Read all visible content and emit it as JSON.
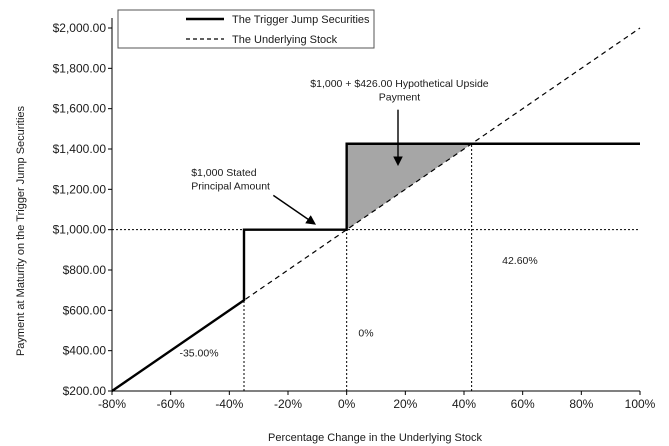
{
  "chart_data": {
    "type": "line",
    "title": "",
    "xlabel": "Percentage Change in the Underlying Stock",
    "ylabel": "Payment at Maturity on the Trigger Jump Securities",
    "xlim": [
      -80,
      100
    ],
    "ylim": [
      200,
      2000
    ],
    "grid": false,
    "legend_position": "top-left",
    "x_ticks": [
      -80,
      -60,
      -40,
      -20,
      0,
      20,
      40,
      60,
      80,
      100
    ],
    "x_tick_labels": [
      "-80%",
      "-60%",
      "-40%",
      "-20%",
      "0%",
      "20%",
      "40%",
      "60%",
      "80%",
      "100%"
    ],
    "y_ticks": [
      200,
      400,
      600,
      800,
      1000,
      1200,
      1400,
      1600,
      1800,
      2000
    ],
    "y_tick_labels": [
      "$200.00",
      "$400.00",
      "$600.00",
      "$800.00",
      "$1,000.00",
      "$1,200.00",
      "$1,400.00",
      "$1,600.00",
      "$1,800.00",
      "$2,000.00"
    ],
    "series": [
      {
        "name": "The Trigger Jump Securities",
        "style": "solid",
        "color": "#000000",
        "x": [
          -80,
          -35,
          -35,
          0,
          0,
          100
        ],
        "y": [
          200,
          650,
          1000,
          1000,
          1426,
          1426
        ]
      },
      {
        "name": "The Underlying Stock",
        "style": "dashed",
        "color": "#000000",
        "x": [
          -80,
          100
        ],
        "y": [
          200,
          2000
        ]
      }
    ],
    "shaded_region": {
      "color": "#a6a6a6",
      "x": [
        0,
        0,
        42.6
      ],
      "y": [
        1000,
        1426,
        1426
      ]
    },
    "reference_lines": [
      {
        "orientation": "horizontal",
        "y": 1000,
        "x_from": -80,
        "x_to": 100
      },
      {
        "orientation": "vertical",
        "x": -35,
        "y_from": 200,
        "y_to": 1000
      },
      {
        "orientation": "vertical",
        "x": 0,
        "y_from": 200,
        "y_to": 1000
      },
      {
        "orientation": "vertical",
        "x": 42.6,
        "y_from": 200,
        "y_to": 1426
      }
    ],
    "annotations": [
      {
        "text": "$1,000 + $426.00 Hypothetical Upside",
        "x": 18,
        "y": 1708
      },
      {
        "text": "Payment",
        "x": 18,
        "y": 1640
      },
      {
        "text": "$1,000 Stated",
        "x": -53,
        "y": 1265
      },
      {
        "text": "Principal Amount",
        "x": -53,
        "y": 1200
      },
      {
        "text": "-35.00%",
        "x": -57,
        "y": 370
      },
      {
        "text": "0%",
        "x": 4,
        "y": 470
      },
      {
        "text": "42.60%",
        "x": 53,
        "y": 830
      }
    ],
    "arrows": [
      {
        "from": [
          17.5,
          1595
        ],
        "to": [
          17.5,
          1325
        ]
      },
      {
        "from": [
          -25,
          1170
        ],
        "to": [
          -11,
          1030
        ]
      }
    ]
  }
}
